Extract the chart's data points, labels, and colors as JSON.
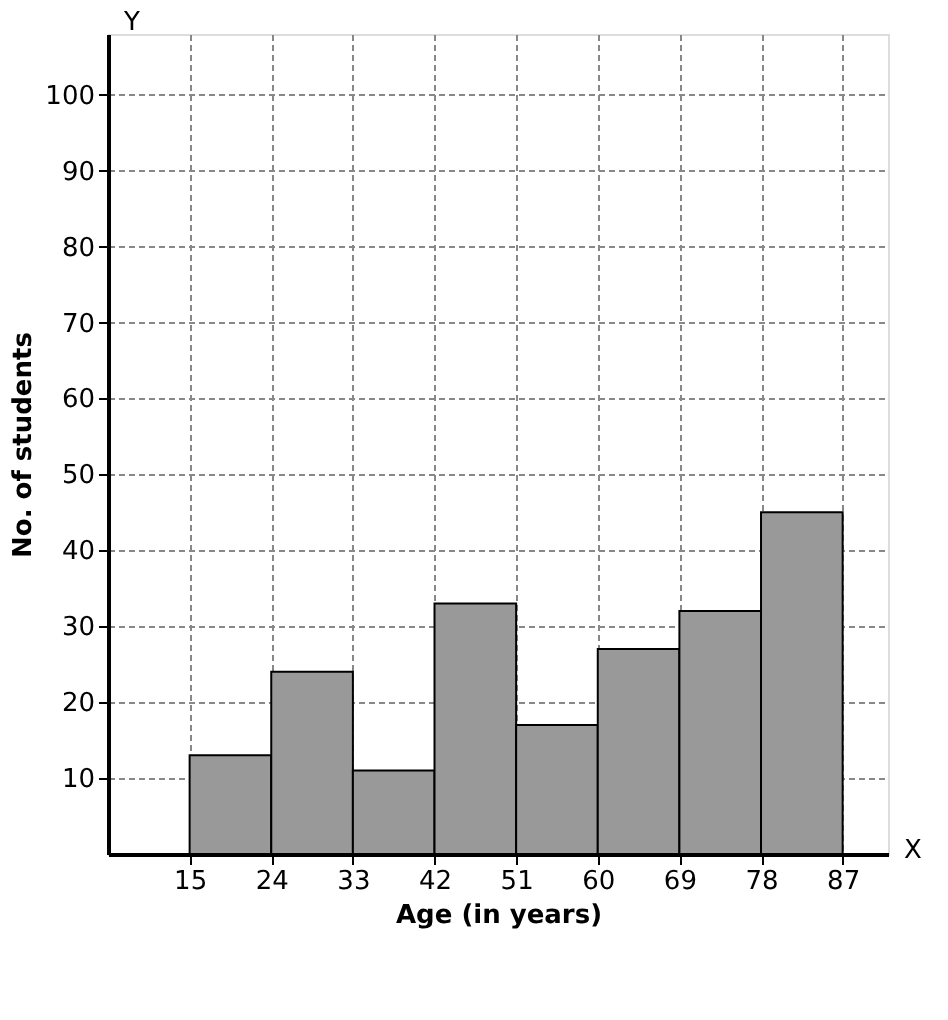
{
  "chart_data": {
    "type": "histogram",
    "xlabel": "Age (in years)",
    "ylabel": "No. of students",
    "bins": [
      15,
      24,
      33,
      42,
      51,
      60,
      69,
      78,
      87
    ],
    "values": [
      13,
      24,
      11,
      33,
      17,
      27,
      32,
      45
    ],
    "color": "#999999",
    "xlim": [
      6,
      92
    ],
    "xticks": [
      15,
      24,
      33,
      42,
      51,
      60,
      69,
      78,
      87
    ],
    "ylim": [
      0,
      108
    ],
    "yticks": [
      10,
      20,
      30,
      40,
      50,
      60,
      70,
      80,
      90,
      100
    ],
    "grid": true,
    "annotations": [
      "X",
      "Y"
    ]
  }
}
